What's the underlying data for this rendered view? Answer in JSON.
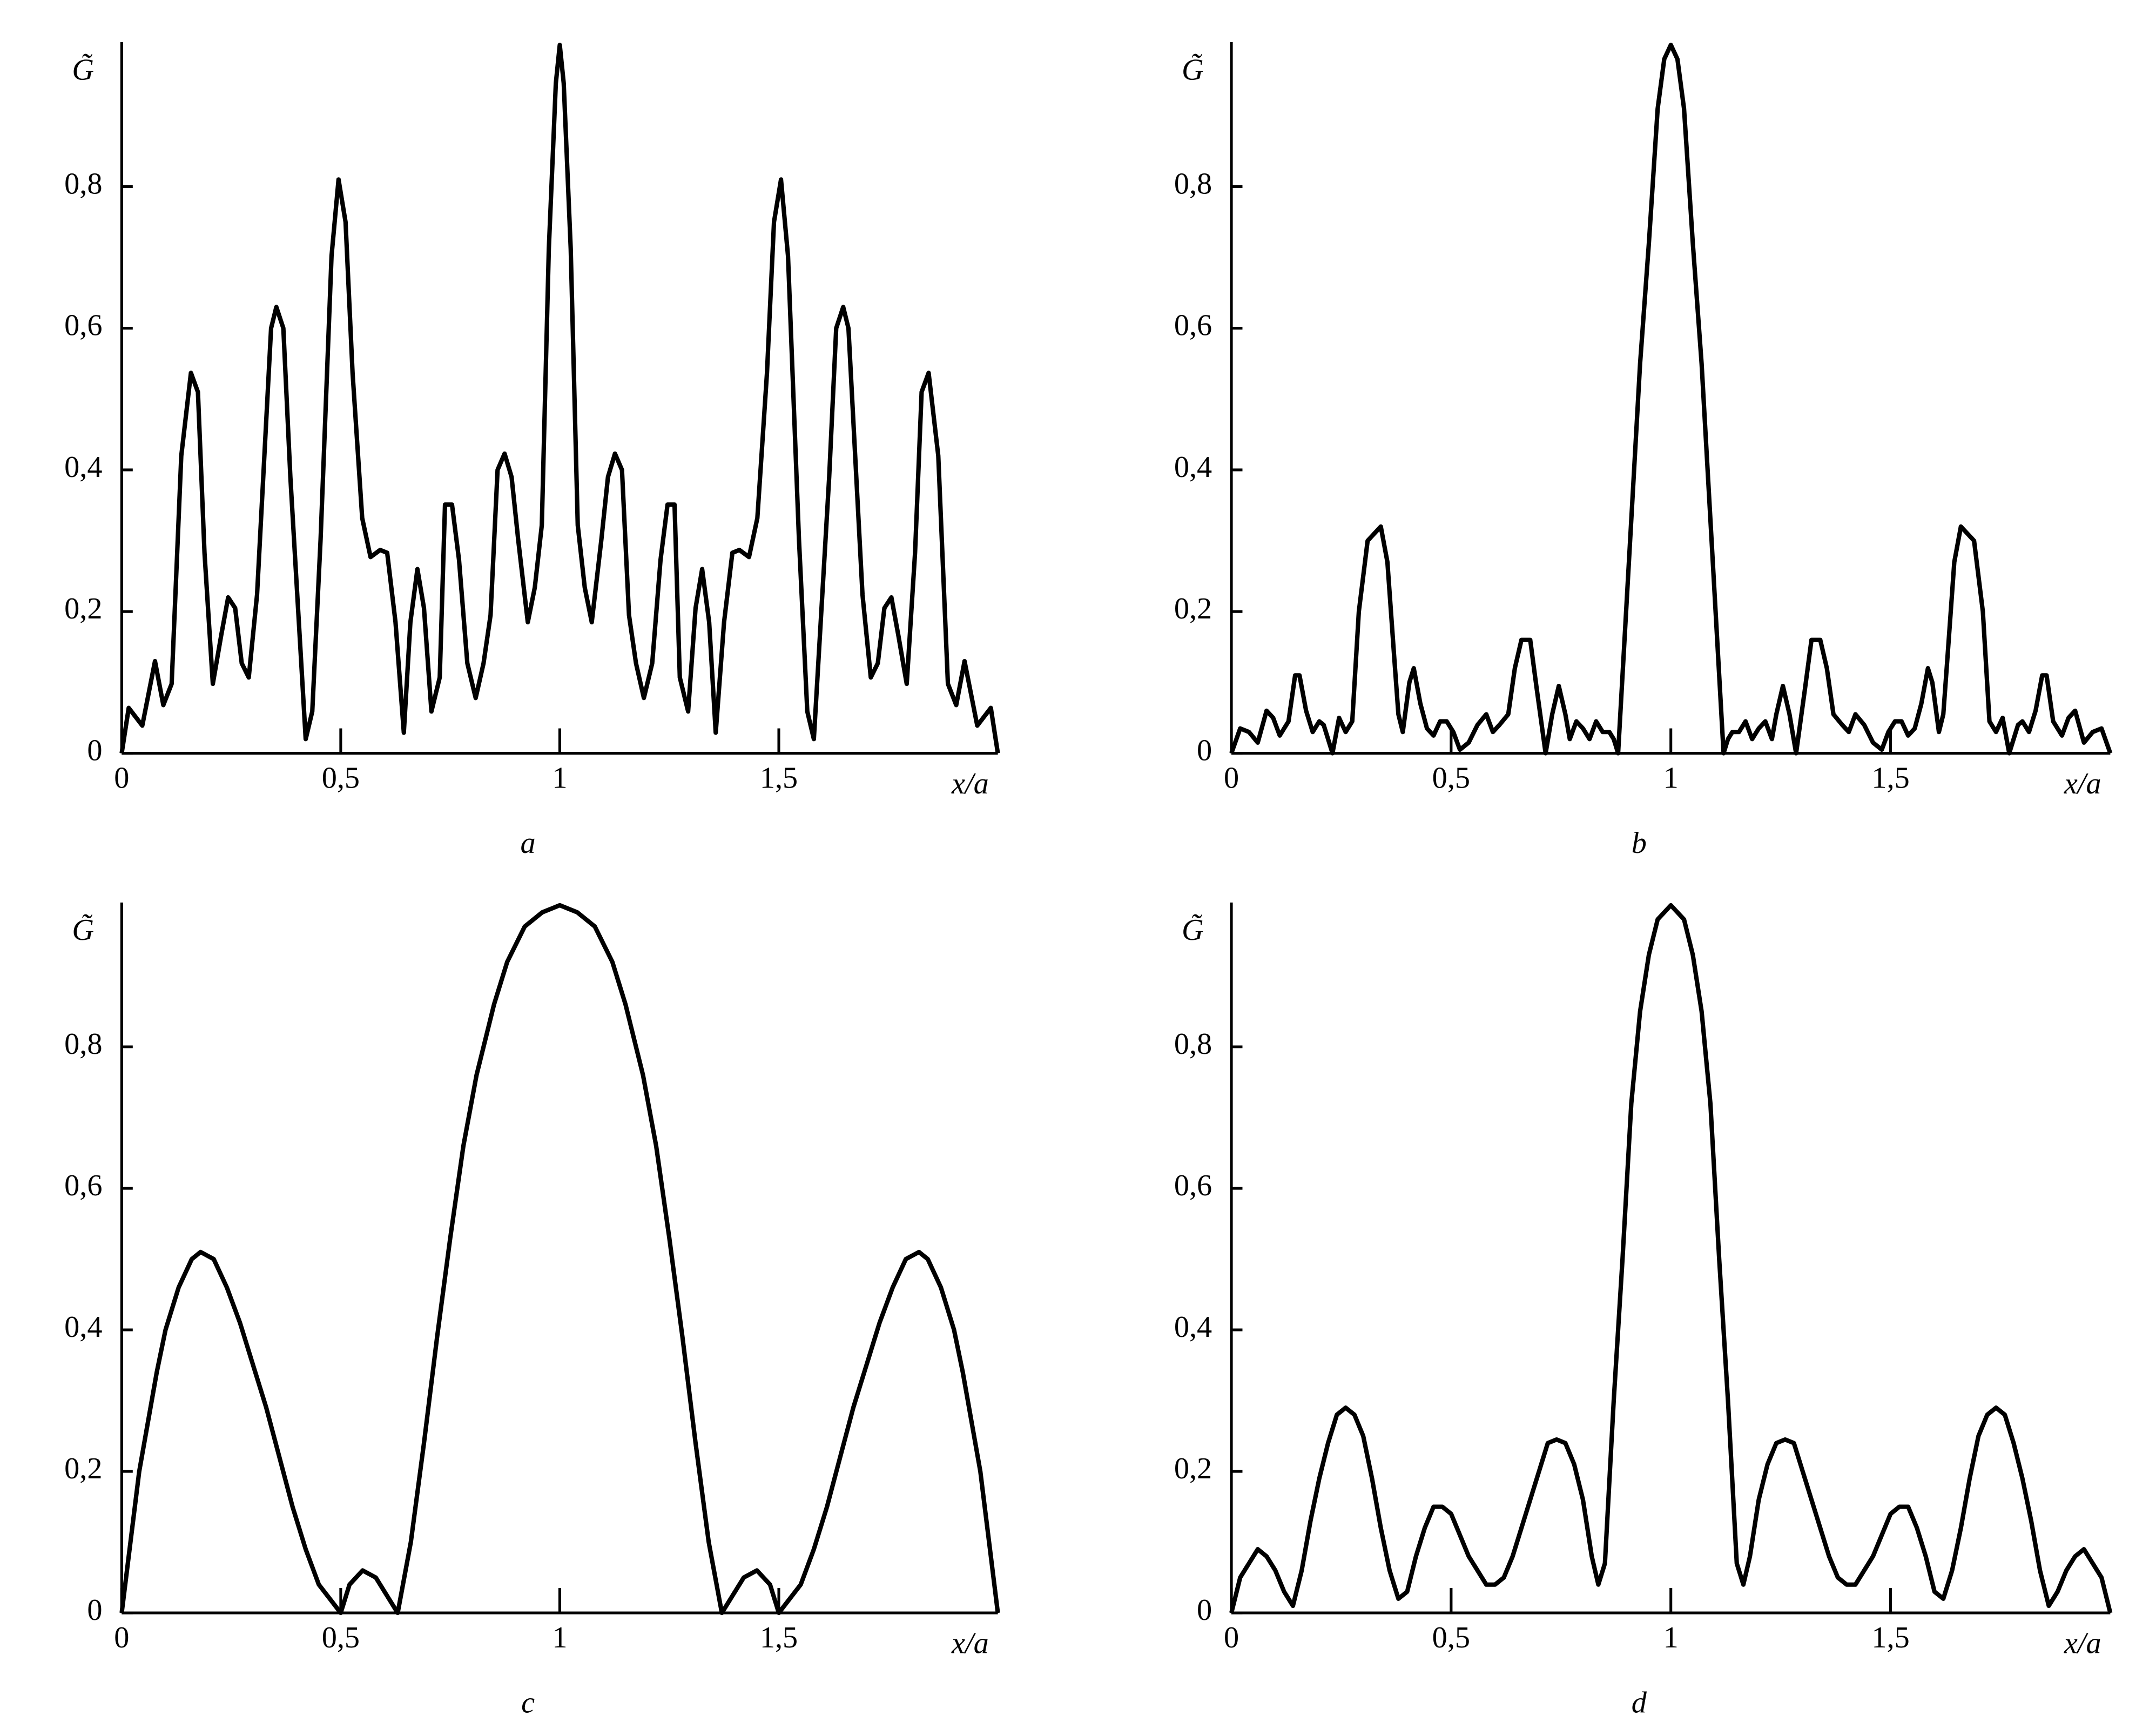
{
  "chart_data": [
    {
      "type": "line",
      "panel_label": "a",
      "y_label": "G̃",
      "x_label": "x/a",
      "color": "#000000",
      "xlim": [
        0,
        2
      ],
      "ylim": [
        0,
        1
      ],
      "xticks": [
        0,
        {
          "value": 0.5,
          "label": "0,5"
        },
        1,
        {
          "value": 1.5,
          "label": "1,5"
        }
      ],
      "yticks": [
        0,
        {
          "value": 0.2,
          "label": "0,2"
        },
        {
          "value": 0.4,
          "label": "0,4"
        },
        {
          "value": 0.6,
          "label": "0,6"
        },
        {
          "value": 0.8,
          "label": "0,8"
        }
      ],
      "x": [
        0,
        0.016,
        0.047,
        0.076,
        0.095,
        0.114,
        0.136,
        0.158,
        0.174,
        0.189,
        0.208,
        0.227,
        0.243,
        0.259,
        0.274,
        0.29,
        0.309,
        0.341,
        0.353,
        0.369,
        0.385,
        0.42,
        0.435,
        0.454,
        0.479,
        0.495,
        0.511,
        0.527,
        0.549,
        0.568,
        0.59,
        0.606,
        0.625,
        0.644,
        0.659,
        0.675,
        0.69,
        0.707,
        0.726,
        0.738,
        0.754,
        0.77,
        0.789,
        0.808,
        0.826,
        0.842,
        0.858,
        0.874,
        0.89,
        0.905,
        0.927,
        0.943,
        0.959,
        0.975,
        0.991,
        1,
        1.009,
        1.025,
        1.041,
        1.057,
        1.073,
        1.095,
        1.11,
        1.126,
        1.142,
        1.158,
        1.174,
        1.192,
        1.211,
        1.23,
        1.246,
        1.262,
        1.274,
        1.293,
        1.31,
        1.325,
        1.341,
        1.356,
        1.375,
        1.394,
        1.41,
        1.432,
        1.451,
        1.473,
        1.489,
        1.505,
        1.521,
        1.546,
        1.565,
        1.58,
        1.615,
        1.631,
        1.647,
        1.659,
        1.691,
        1.71,
        1.726,
        1.741,
        1.757,
        1.773,
        1.792,
        1.811,
        1.826,
        1.842,
        1.864,
        1.886,
        1.905,
        1.924,
        1.953,
        1.984,
        2
      ],
      "values": [
        0,
        0.064,
        0.039,
        0.13,
        0.068,
        0.098,
        0.42,
        0.537,
        0.51,
        0.283,
        0.098,
        0.166,
        0.22,
        0.205,
        0.127,
        0.107,
        0.224,
        0.6,
        0.63,
        0.6,
        0.39,
        0.02,
        0.059,
        0.302,
        0.702,
        0.81,
        0.75,
        0.537,
        0.332,
        0.277,
        0.287,
        0.283,
        0.185,
        0.029,
        0.185,
        0.26,
        0.205,
        0.059,
        0.107,
        0.351,
        0.351,
        0.273,
        0.127,
        0.078,
        0.127,
        0.195,
        0.4,
        0.423,
        0.39,
        0.302,
        0.185,
        0.234,
        0.322,
        0.712,
        0.946,
        1,
        0.946,
        0.712,
        0.322,
        0.234,
        0.185,
        0.302,
        0.39,
        0.423,
        0.4,
        0.195,
        0.127,
        0.078,
        0.127,
        0.273,
        0.351,
        0.351,
        0.107,
        0.059,
        0.205,
        0.26,
        0.185,
        0.029,
        0.185,
        0.283,
        0.287,
        0.277,
        0.332,
        0.537,
        0.75,
        0.81,
        0.702,
        0.302,
        0.059,
        0.02,
        0.39,
        0.6,
        0.63,
        0.6,
        0.224,
        0.107,
        0.127,
        0.205,
        0.22,
        0.166,
        0.098,
        0.283,
        0.51,
        0.537,
        0.42,
        0.098,
        0.068,
        0.13,
        0.039,
        0.064,
        0
      ]
    },
    {
      "type": "line",
      "panel_label": "b",
      "y_label": "G̃",
      "x_label": "x/a",
      "color": "#000000",
      "xlim": [
        0,
        2
      ],
      "ylim": [
        0,
        1
      ],
      "xticks": [
        0,
        {
          "value": 0.5,
          "label": "0,5"
        },
        1,
        {
          "value": 1.5,
          "label": "1,5"
        }
      ],
      "yticks": [
        0,
        {
          "value": 0.2,
          "label": "0,2"
        },
        {
          "value": 0.4,
          "label": "0,4"
        },
        {
          "value": 0.6,
          "label": "0,6"
        },
        {
          "value": 0.8,
          "label": "0,8"
        }
      ],
      "x": [
        0,
        0.02,
        0.04,
        0.06,
        0.08,
        0.095,
        0.11,
        0.13,
        0.145,
        0.155,
        0.17,
        0.185,
        0.2,
        0.21,
        0.23,
        0.245,
        0.26,
        0.275,
        0.29,
        0.31,
        0.34,
        0.355,
        0.37,
        0.38,
        0.39,
        0.405,
        0.415,
        0.43,
        0.445,
        0.46,
        0.475,
        0.49,
        0.505,
        0.52,
        0.54,
        0.56,
        0.58,
        0.595,
        0.61,
        0.63,
        0.645,
        0.66,
        0.68,
        0.695,
        0.715,
        0.73,
        0.745,
        0.76,
        0.77,
        0.785,
        0.8,
        0.815,
        0.83,
        0.845,
        0.86,
        0.87,
        0.88,
        0.93,
        0.95,
        0.97,
        0.985,
        1,
        1.015,
        1.03,
        1.05,
        1.07,
        1.12,
        1.13,
        1.14,
        1.155,
        1.17,
        1.185,
        1.2,
        1.215,
        1.23,
        1.24,
        1.255,
        1.27,
        1.285,
        1.305,
        1.32,
        1.34,
        1.355,
        1.37,
        1.39,
        1.405,
        1.42,
        1.44,
        1.46,
        1.48,
        1.495,
        1.51,
        1.525,
        1.54,
        1.555,
        1.57,
        1.585,
        1.595,
        1.61,
        1.62,
        1.63,
        1.645,
        1.66,
        1.69,
        1.71,
        1.725,
        1.74,
        1.755,
        1.77,
        1.79,
        1.8,
        1.815,
        1.83,
        1.845,
        1.855,
        1.87,
        1.89,
        1.905,
        1.92,
        1.94,
        1.96,
        1.98,
        2
      ],
      "values": [
        0,
        0.035,
        0.03,
        0.015,
        0.06,
        0.05,
        0.025,
        0.045,
        0.11,
        0.11,
        0.06,
        0.03,
        0.045,
        0.04,
        0,
        0.05,
        0.03,
        0.045,
        0.2,
        0.3,
        0.32,
        0.27,
        0.14,
        0.055,
        0.03,
        0.1,
        0.12,
        0.07,
        0.035,
        0.025,
        0.045,
        0.045,
        0.03,
        0.005,
        0.015,
        0.04,
        0.055,
        0.03,
        0.04,
        0.055,
        0.12,
        0.16,
        0.16,
        0.09,
        0,
        0.055,
        0.095,
        0.055,
        0.02,
        0.045,
        0.035,
        0.02,
        0.045,
        0.03,
        0.03,
        0.02,
        0,
        0.55,
        0.72,
        0.91,
        0.98,
        1,
        0.98,
        0.91,
        0.72,
        0.55,
        0,
        0.02,
        0.03,
        0.03,
        0.045,
        0.02,
        0.035,
        0.045,
        0.02,
        0.055,
        0.095,
        0.055,
        0,
        0.09,
        0.16,
        0.16,
        0.12,
        0.055,
        0.04,
        0.03,
        0.055,
        0.04,
        0.015,
        0.005,
        0.03,
        0.045,
        0.045,
        0.025,
        0.035,
        0.07,
        0.12,
        0.1,
        0.03,
        0.055,
        0.14,
        0.27,
        0.32,
        0.3,
        0.2,
        0.045,
        0.03,
        0.05,
        0,
        0.04,
        0.045,
        0.03,
        0.06,
        0.11,
        0.11,
        0.045,
        0.025,
        0.05,
        0.06,
        0.015,
        0.03,
        0.035,
        0
      ]
    },
    {
      "type": "line",
      "panel_label": "c",
      "y_label": "G̃",
      "x_label": "x/a",
      "color": "#000000",
      "xlim": [
        0,
        2
      ],
      "ylim": [
        0,
        1
      ],
      "xticks": [
        0,
        {
          "value": 0.5,
          "label": "0,5"
        },
        1,
        {
          "value": 1.5,
          "label": "1,5"
        }
      ],
      "yticks": [
        0,
        {
          "value": 0.2,
          "label": "0,2"
        },
        {
          "value": 0.4,
          "label": "0,4"
        },
        {
          "value": 0.6,
          "label": "0,6"
        },
        {
          "value": 0.8,
          "label": "0,8"
        }
      ],
      "x": [
        0,
        0.02,
        0.04,
        0.06,
        0.08,
        0.1,
        0.13,
        0.16,
        0.18,
        0.21,
        0.24,
        0.27,
        0.3,
        0.33,
        0.36,
        0.39,
        0.42,
        0.45,
        0.5,
        0.52,
        0.55,
        0.58,
        0.61,
        0.63,
        0.66,
        0.69,
        0.72,
        0.75,
        0.78,
        0.81,
        0.85,
        0.88,
        0.92,
        0.96,
        1,
        1.04,
        1.08,
        1.12,
        1.15,
        1.19,
        1.22,
        1.25,
        1.28,
        1.31,
        1.34,
        1.37,
        1.39,
        1.42,
        1.45,
        1.48,
        1.5,
        1.55,
        1.58,
        1.61,
        1.64,
        1.67,
        1.7,
        1.73,
        1.76,
        1.79,
        1.82,
        1.84,
        1.87,
        1.9,
        1.92,
        1.94,
        1.96,
        1.98,
        2
      ],
      "values": [
        0,
        0.1,
        0.2,
        0.27,
        0.34,
        0.4,
        0.46,
        0.5,
        0.51,
        0.5,
        0.46,
        0.41,
        0.35,
        0.29,
        0.22,
        0.15,
        0.09,
        0.04,
        0,
        0.04,
        0.06,
        0.05,
        0.02,
        0,
        0.1,
        0.24,
        0.39,
        0.53,
        0.66,
        0.76,
        0.86,
        0.92,
        0.97,
        0.99,
        1,
        0.99,
        0.97,
        0.92,
        0.86,
        0.76,
        0.66,
        0.53,
        0.39,
        0.24,
        0.1,
        0,
        0.02,
        0.05,
        0.06,
        0.04,
        0,
        0.04,
        0.09,
        0.15,
        0.22,
        0.29,
        0.35,
        0.41,
        0.46,
        0.5,
        0.51,
        0.5,
        0.46,
        0.4,
        0.34,
        0.27,
        0.2,
        0.1,
        0
      ]
    },
    {
      "type": "line",
      "panel_label": "d",
      "y_label": "G̃",
      "x_label": "x/a",
      "color": "#000000",
      "xlim": [
        0,
        2
      ],
      "ylim": [
        0,
        1
      ],
      "xticks": [
        0,
        {
          "value": 0.5,
          "label": "0,5"
        },
        1,
        {
          "value": 1.5,
          "label": "1,5"
        }
      ],
      "yticks": [
        0,
        {
          "value": 0.2,
          "label": "0,2"
        },
        {
          "value": 0.4,
          "label": "0,4"
        },
        {
          "value": 0.6,
          "label": "0,6"
        },
        {
          "value": 0.8,
          "label": "0,8"
        }
      ],
      "x": [
        0,
        0.02,
        0.04,
        0.06,
        0.08,
        0.1,
        0.12,
        0.14,
        0.16,
        0.18,
        0.2,
        0.22,
        0.24,
        0.26,
        0.28,
        0.3,
        0.32,
        0.34,
        0.36,
        0.38,
        0.4,
        0.42,
        0.44,
        0.46,
        0.48,
        0.5,
        0.52,
        0.54,
        0.56,
        0.58,
        0.6,
        0.62,
        0.64,
        0.66,
        0.68,
        0.7,
        0.72,
        0.74,
        0.76,
        0.78,
        0.8,
        0.82,
        0.835,
        0.85,
        0.87,
        0.89,
        0.91,
        0.93,
        0.95,
        0.97,
        1,
        1.03,
        1.05,
        1.07,
        1.09,
        1.11,
        1.13,
        1.15,
        1.165,
        1.18,
        1.2,
        1.22,
        1.24,
        1.26,
        1.28,
        1.3,
        1.32,
        1.34,
        1.36,
        1.38,
        1.4,
        1.42,
        1.44,
        1.46,
        1.48,
        1.5,
        1.52,
        1.54,
        1.56,
        1.58,
        1.6,
        1.62,
        1.64,
        1.66,
        1.68,
        1.7,
        1.72,
        1.74,
        1.76,
        1.78,
        1.8,
        1.82,
        1.84,
        1.86,
        1.88,
        1.9,
        1.92,
        1.94,
        1.96,
        1.98,
        2
      ],
      "values": [
        0,
        0.05,
        0.07,
        0.09,
        0.08,
        0.06,
        0.03,
        0.01,
        0.06,
        0.13,
        0.19,
        0.24,
        0.28,
        0.29,
        0.28,
        0.25,
        0.19,
        0.12,
        0.06,
        0.02,
        0.03,
        0.08,
        0.12,
        0.15,
        0.15,
        0.14,
        0.11,
        0.08,
        0.06,
        0.04,
        0.04,
        0.05,
        0.08,
        0.12,
        0.16,
        0.2,
        0.24,
        0.245,
        0.24,
        0.21,
        0.16,
        0.08,
        0.04,
        0.07,
        0.3,
        0.5,
        0.72,
        0.85,
        0.93,
        0.98,
        1,
        0.98,
        0.93,
        0.85,
        0.72,
        0.5,
        0.3,
        0.07,
        0.04,
        0.08,
        0.16,
        0.21,
        0.24,
        0.245,
        0.24,
        0.2,
        0.16,
        0.12,
        0.08,
        0.05,
        0.04,
        0.04,
        0.06,
        0.08,
        0.11,
        0.14,
        0.15,
        0.15,
        0.12,
        0.08,
        0.03,
        0.02,
        0.06,
        0.12,
        0.19,
        0.25,
        0.28,
        0.29,
        0.28,
        0.24,
        0.19,
        0.13,
        0.06,
        0.01,
        0.03,
        0.06,
        0.08,
        0.09,
        0.07,
        0.05,
        0
      ]
    }
  ]
}
